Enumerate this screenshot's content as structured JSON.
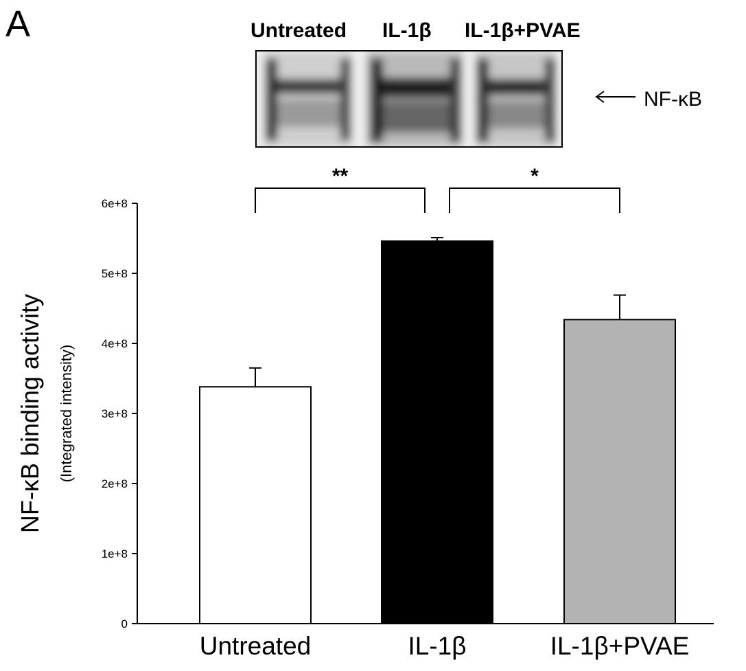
{
  "panel_label": "A",
  "blot": {
    "lanes": [
      "Untreated",
      "IL-1β",
      "IL-1β+PVAE"
    ],
    "band_label": "NF-κB"
  },
  "chart_data": {
    "type": "bar",
    "categories": [
      "Untreated",
      "IL-1β",
      "IL-1β+PVAE"
    ],
    "values": [
      338000000,
      546000000,
      434000000
    ],
    "errors": [
      27000000,
      5000000,
      35000000
    ],
    "colors": [
      "#ffffff",
      "#000000",
      "#b3b3b3"
    ],
    "ylabel": "NF-κB binding activity",
    "ylabel_sub": "(Integrated intensity)",
    "ylim": [
      0,
      600000000
    ],
    "yticks": [
      {
        "value": 0,
        "label": "0"
      },
      {
        "value": 100000000,
        "label": "1e+8"
      },
      {
        "value": 200000000,
        "label": "2e+8"
      },
      {
        "value": 300000000,
        "label": "3e+8"
      },
      {
        "value": 400000000,
        "label": "4e+8"
      },
      {
        "value": 500000000,
        "label": "5e+8"
      },
      {
        "value": 600000000,
        "label": "6e+8"
      }
    ],
    "significance": [
      {
        "from": 0,
        "to": 1,
        "label": "**"
      },
      {
        "from": 1,
        "to": 2,
        "label": "*"
      }
    ],
    "grid": false
  }
}
